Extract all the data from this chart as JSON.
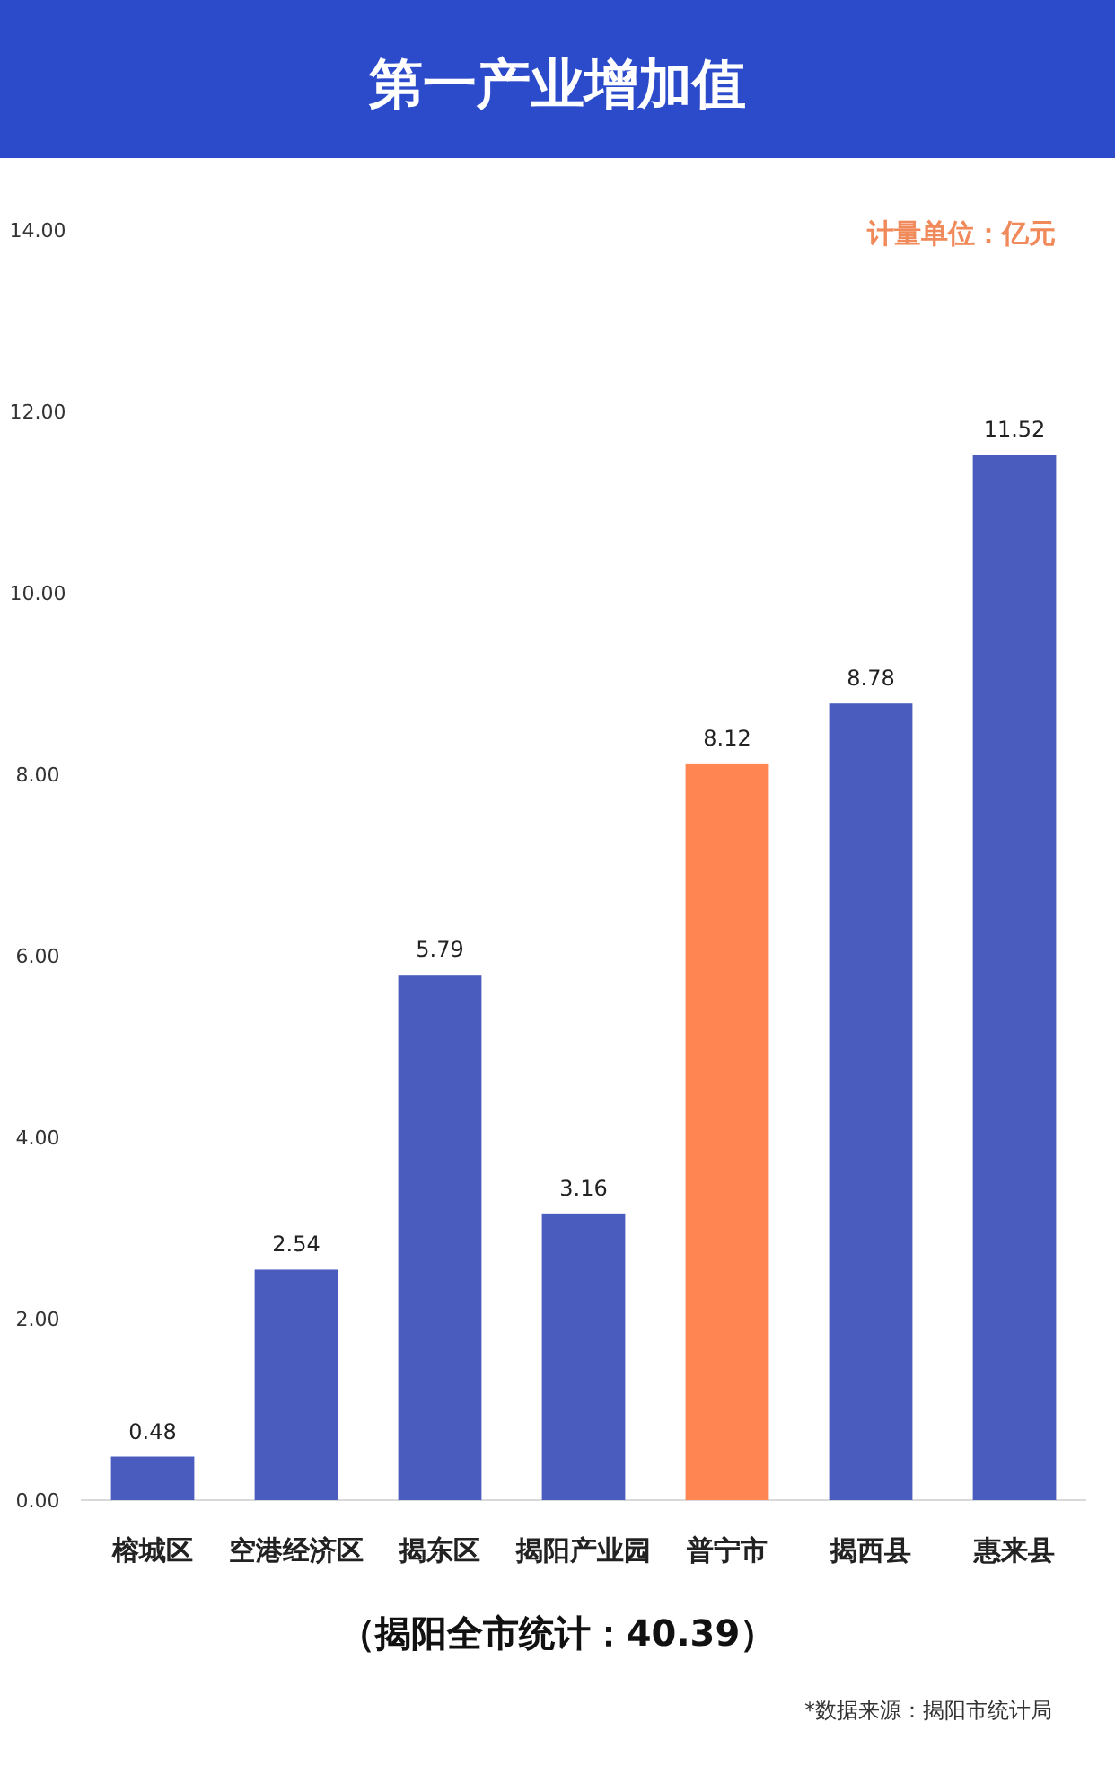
{
  "chart_data": {
    "type": "bar",
    "title": "第一产业增加值",
    "categories": [
      "榕城区",
      "空港经济区",
      "揭东区",
      "揭阳产业园",
      "普宁市",
      "揭西县",
      "惠来县"
    ],
    "values": [
      0.48,
      2.54,
      5.79,
      3.16,
      8.12,
      8.78,
      11.52
    ],
    "colors": [
      "#4a5cbd",
      "#4a5cbd",
      "#4a5cbd",
      "#4a5cbd",
      "#ff8652",
      "#4a5cbd",
      "#4a5cbd"
    ],
    "ylim": [
      0,
      14
    ],
    "yticks": [
      {
        "value": 0,
        "label": "0.00"
      },
      {
        "value": 2,
        "label": "2.00"
      },
      {
        "value": 4,
        "label": "4.00"
      },
      {
        "value": 6,
        "label": "6.00"
      },
      {
        "value": 8,
        "label": "8.00"
      },
      {
        "value": 10,
        "label": "10.00"
      },
      {
        "value": 12,
        "label": "12.00"
      },
      {
        "value": 14,
        "label": "14.00"
      }
    ],
    "data_labels": true,
    "annotations": [
      "计量单位：亿元",
      "（揭阳全市统计：40.39）",
      "*数据来源：揭阳市统计局"
    ]
  }
}
